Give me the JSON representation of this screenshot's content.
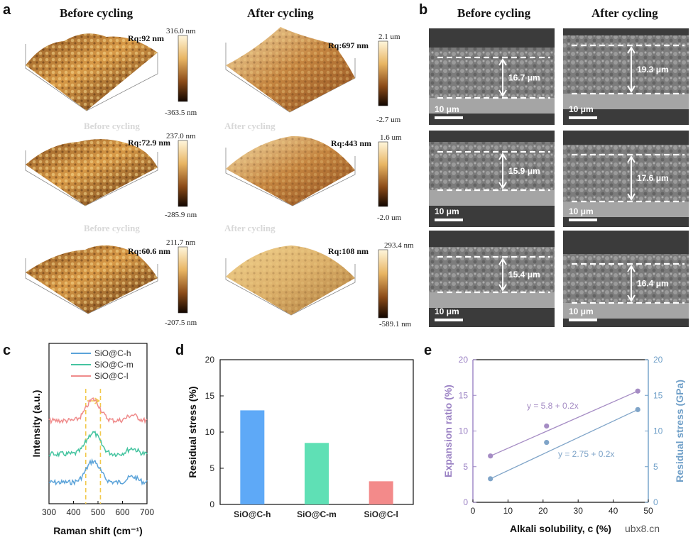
{
  "panel_a": {
    "label": "a",
    "headers": [
      "Before cycling",
      "After cycling"
    ],
    "ghost_labels": [
      "Before cycling",
      "After cycling",
      "Before cycling",
      "After cycling"
    ],
    "rows": [
      {
        "before": {
          "rq": "Rq:92 nm",
          "cb_top": "316.0 nm",
          "cb_bottom": "-363.5 nm"
        },
        "after": {
          "rq": "Rq:697 nm",
          "cb_top": "2.1 um",
          "cb_bottom": "-2.7 um"
        }
      },
      {
        "before": {
          "rq": "Rq:72.9 nm",
          "cb_top": "237.0 nm",
          "cb_bottom": "-285.9 nm"
        },
        "after": {
          "rq": "Rq:443 nm",
          "cb_top": "1.6 um",
          "cb_bottom": "-2.0 um"
        }
      },
      {
        "before": {
          "rq": "Rq:60.6 nm",
          "cb_top": "211.7 nm",
          "cb_bottom": "-207.5 nm"
        },
        "after": {
          "rq": "Rq:108 nm",
          "cb_top": "293.4 nm",
          "cb_bottom": "-589.1 nm"
        }
      }
    ]
  },
  "panel_b": {
    "label": "b",
    "headers": [
      "Before cycling",
      "After cycling"
    ],
    "scale_bar": "10 μm",
    "rows": [
      {
        "before": "16.7 μm",
        "after": "19.3 μm"
      },
      {
        "before": "15.9 μm",
        "after": "17.6 μm"
      },
      {
        "before": "15.4 μm",
        "after": "16.4 μm"
      }
    ]
  },
  "chart_data": [
    {
      "panel": "c",
      "type": "line",
      "xlabel": "Raman shift (cm⁻¹)",
      "ylabel": "Intensity (a.u.)",
      "xlim": [
        300,
        700
      ],
      "x_ticks": [
        "300",
        "400",
        "500",
        "600",
        "700"
      ],
      "series": [
        {
          "name": "SiO@C-h",
          "color": "#5ba3d9"
        },
        {
          "name": "SiO@C-m",
          "color": "#45c4a0"
        },
        {
          "name": "SiO@C-l",
          "color": "#ef8b8b"
        }
      ],
      "marker_lines": [
        450,
        510
      ],
      "marker_color": "#f2c94c"
    },
    {
      "panel": "d",
      "type": "bar",
      "categories": [
        "SiO@C-h",
        "SiO@C-m",
        "SiO@C-l"
      ],
      "values": [
        13.0,
        8.5,
        3.2
      ],
      "colors": [
        "#5ea9f7",
        "#5fe0b5",
        "#f38a8a"
      ],
      "ylabel": "Residual stress (%)",
      "ylim": [
        0,
        20
      ],
      "y_ticks": [
        "0",
        "5",
        "10",
        "15",
        "20"
      ]
    },
    {
      "panel": "e",
      "type": "scatter",
      "xlabel": "Alkali solubility, c (%)",
      "ylabel_left": "Expansion ratio (%)",
      "ylabel_right": "Residual stress (GPa)",
      "xlim": [
        0,
        50
      ],
      "ylim": [
        0,
        20
      ],
      "x_ticks": [
        "0",
        "10",
        "20",
        "30",
        "40",
        "50"
      ],
      "y_ticks": [
        "0",
        "5",
        "10",
        "15",
        "20"
      ],
      "series": [
        {
          "x": [
            5,
            21,
            47
          ],
          "y": [
            6.5,
            10.7,
            15.6
          ],
          "color": "#a58cc4",
          "equation": "y = 5.8 + 0.2x"
        },
        {
          "x": [
            5,
            21,
            47
          ],
          "y": [
            3.3,
            8.4,
            13.0
          ],
          "color": "#7fa4c8",
          "equation": "y = 2.75 + 0.2x"
        }
      ],
      "left_axis_color": "#9b82c4",
      "right_axis_color": "#6f9fc8"
    }
  ],
  "watermark": "ubx8.cn",
  "colors": {
    "afm_light": "#f2dea0",
    "afm_mid": "#b5762e",
    "afm_dark": "#3b1e09",
    "sem_gray": "#8a8a8a"
  }
}
